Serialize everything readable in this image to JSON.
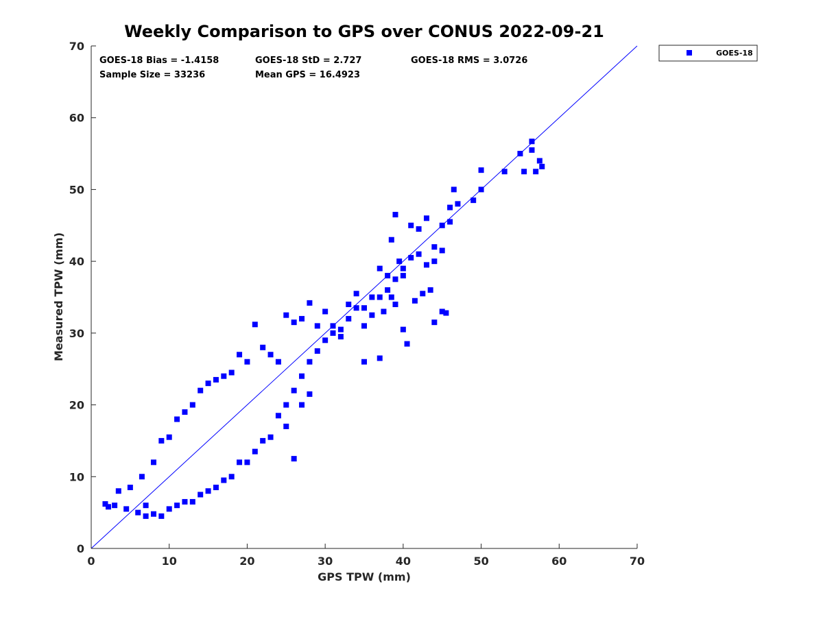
{
  "chart_data": {
    "type": "scatter",
    "title": "Weekly Comparison to GPS over CONUS 2022-09-21",
    "xlabel": "GPS TPW (mm)",
    "ylabel": "Measured TPW (mm)",
    "xlim": [
      0,
      70
    ],
    "ylim": [
      0,
      70
    ],
    "xticks": [
      "0",
      "10",
      "20",
      "30",
      "40",
      "50",
      "60",
      "70"
    ],
    "yticks": [
      "0",
      "10",
      "20",
      "30",
      "40",
      "50",
      "60",
      "70"
    ],
    "grid": false,
    "legend_position": "outside-top-right",
    "stats": [
      "GOES-18 Bias = -1.4158",
      "GOES-18 StD = 2.727",
      "GOES-18 RMS = 3.0726",
      "Sample Size = 33236",
      "Mean GPS = 16.4923"
    ],
    "reference_line": {
      "x": [
        0,
        70
      ],
      "y": [
        0,
        70
      ]
    },
    "series": [
      {
        "name": "GOES-18",
        "color": "#0000ff",
        "marker": "square",
        "points": [
          [
            1.8,
            6.2
          ],
          [
            2.2,
            5.8
          ],
          [
            3.0,
            6.0
          ],
          [
            3.5,
            8.0
          ],
          [
            4.5,
            5.5
          ],
          [
            5.0,
            8.5
          ],
          [
            6.0,
            5.0
          ],
          [
            7.0,
            6.0
          ],
          [
            8.0,
            12.0
          ],
          [
            9.0,
            15.0
          ],
          [
            6.5,
            10.0
          ],
          [
            10.0,
            15.5
          ],
          [
            11.0,
            18.0
          ],
          [
            12.0,
            19.0
          ],
          [
            13.0,
            20.0
          ],
          [
            14.0,
            22.0
          ],
          [
            15.0,
            23.0
          ],
          [
            16.0,
            23.5
          ],
          [
            17.0,
            24.0
          ],
          [
            18.0,
            24.5
          ],
          [
            19.0,
            27.0
          ],
          [
            20.0,
            26.0
          ],
          [
            21.0,
            31.2
          ],
          [
            22.0,
            28.0
          ],
          [
            23.0,
            27.0
          ],
          [
            24.0,
            26.0
          ],
          [
            25.0,
            32.5
          ],
          [
            26.0,
            31.5
          ],
          [
            27.0,
            32.0
          ],
          [
            28.0,
            34.2
          ],
          [
            29.0,
            31.0
          ],
          [
            30.0,
            33.0
          ],
          [
            31.0,
            30.0
          ],
          [
            32.0,
            30.5
          ],
          [
            33.0,
            34.0
          ],
          [
            34.0,
            35.5
          ],
          [
            35.0,
            33.5
          ],
          [
            36.0,
            35.0
          ],
          [
            37.0,
            39.0
          ],
          [
            38.0,
            38.0
          ],
          [
            38.5,
            43.0
          ],
          [
            39.0,
            46.5
          ],
          [
            39.5,
            40.0
          ],
          [
            40.0,
            38.0
          ],
          [
            41.0,
            45.0
          ],
          [
            42.0,
            44.5
          ],
          [
            43.0,
            46.0
          ],
          [
            44.0,
            42.0
          ],
          [
            45.0,
            45.0
          ],
          [
            46.0,
            47.5
          ],
          [
            46.5,
            50.0
          ],
          [
            47.0,
            48.0
          ],
          [
            49.0,
            48.5
          ],
          [
            50.0,
            50.0
          ],
          [
            50.0,
            52.7
          ],
          [
            53.0,
            52.5
          ],
          [
            55.0,
            55.0
          ],
          [
            55.5,
            52.5
          ],
          [
            56.5,
            56.7
          ],
          [
            57.0,
            52.5
          ],
          [
            57.5,
            54.0
          ],
          [
            57.8,
            53.2
          ],
          [
            56.5,
            55.5
          ],
          [
            40.0,
            30.5
          ],
          [
            40.5,
            28.5
          ],
          [
            44.0,
            31.5
          ],
          [
            45.0,
            33.0
          ],
          [
            45.5,
            32.8
          ],
          [
            37.0,
            26.5
          ],
          [
            35.0,
            26.0
          ],
          [
            28.0,
            21.5
          ],
          [
            27.0,
            20.0
          ],
          [
            26.0,
            12.5
          ],
          [
            25.0,
            17.0
          ],
          [
            22.0,
            15.0
          ],
          [
            20.0,
            12.0
          ],
          [
            18.0,
            10.0
          ],
          [
            16.0,
            8.5
          ],
          [
            14.0,
            7.5
          ],
          [
            12.0,
            6.5
          ],
          [
            10.0,
            5.5
          ],
          [
            8.0,
            4.8
          ],
          [
            7.0,
            4.5
          ],
          [
            9.0,
            4.5
          ],
          [
            11.0,
            6.0
          ],
          [
            13.0,
            6.5
          ],
          [
            15.0,
            8.0
          ],
          [
            17.0,
            9.5
          ],
          [
            19.0,
            12.0
          ],
          [
            21.0,
            13.5
          ],
          [
            23.0,
            15.5
          ],
          [
            24.0,
            18.5
          ],
          [
            25.0,
            20.0
          ],
          [
            26.0,
            22.0
          ],
          [
            27.0,
            24.0
          ],
          [
            28.0,
            26.0
          ],
          [
            29.0,
            27.5
          ],
          [
            30.0,
            29.0
          ],
          [
            31.0,
            31.0
          ],
          [
            32.0,
            29.5
          ],
          [
            33.0,
            32.0
          ],
          [
            34.0,
            33.5
          ],
          [
            35.0,
            31.0
          ],
          [
            36.0,
            32.5
          ],
          [
            37.0,
            35.0
          ],
          [
            38.0,
            36.0
          ],
          [
            39.0,
            37.5
          ],
          [
            40.0,
            39.0
          ],
          [
            41.0,
            40.5
          ],
          [
            42.0,
            41.0
          ],
          [
            43.0,
            39.5
          ],
          [
            44.0,
            40.0
          ],
          [
            45.0,
            41.5
          ],
          [
            46.0,
            45.5
          ],
          [
            42.5,
            35.5
          ],
          [
            43.5,
            36.0
          ],
          [
            41.5,
            34.5
          ],
          [
            39.0,
            34.0
          ],
          [
            38.5,
            35.0
          ],
          [
            37.5,
            33.0
          ]
        ]
      }
    ]
  }
}
